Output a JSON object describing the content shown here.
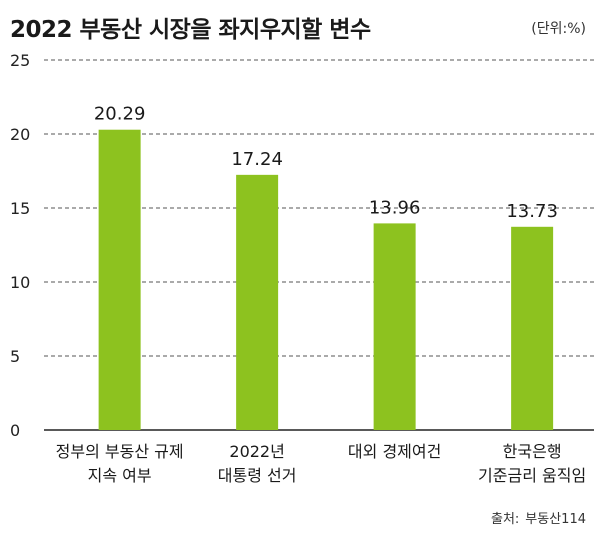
{
  "title": "2022 부동산 시장을 좌지우지할 변수",
  "unit": "(단위:%)",
  "source_label": "출처:",
  "source_value": "부동산114",
  "chart_data": {
    "type": "bar",
    "title": "2022 부동산 시장을 좌지우지할 변수",
    "categories": [
      [
        "정부의 부동산 규제",
        "지속 여부"
      ],
      [
        "2022년",
        "대통령 선거"
      ],
      [
        "대외 경제여건"
      ],
      [
        "한국은행",
        "기준금리 움직임"
      ]
    ],
    "values": [
      20.29,
      17.24,
      13.96,
      13.73
    ],
    "value_labels": [
      "20.29",
      "17.24",
      "13.96",
      "13.73"
    ],
    "ylim": [
      0,
      25
    ],
    "yticks": [
      0,
      5,
      10,
      15,
      20,
      25
    ],
    "grid": true,
    "bar_color": "#8dc21f",
    "grid_color": "#555555"
  }
}
